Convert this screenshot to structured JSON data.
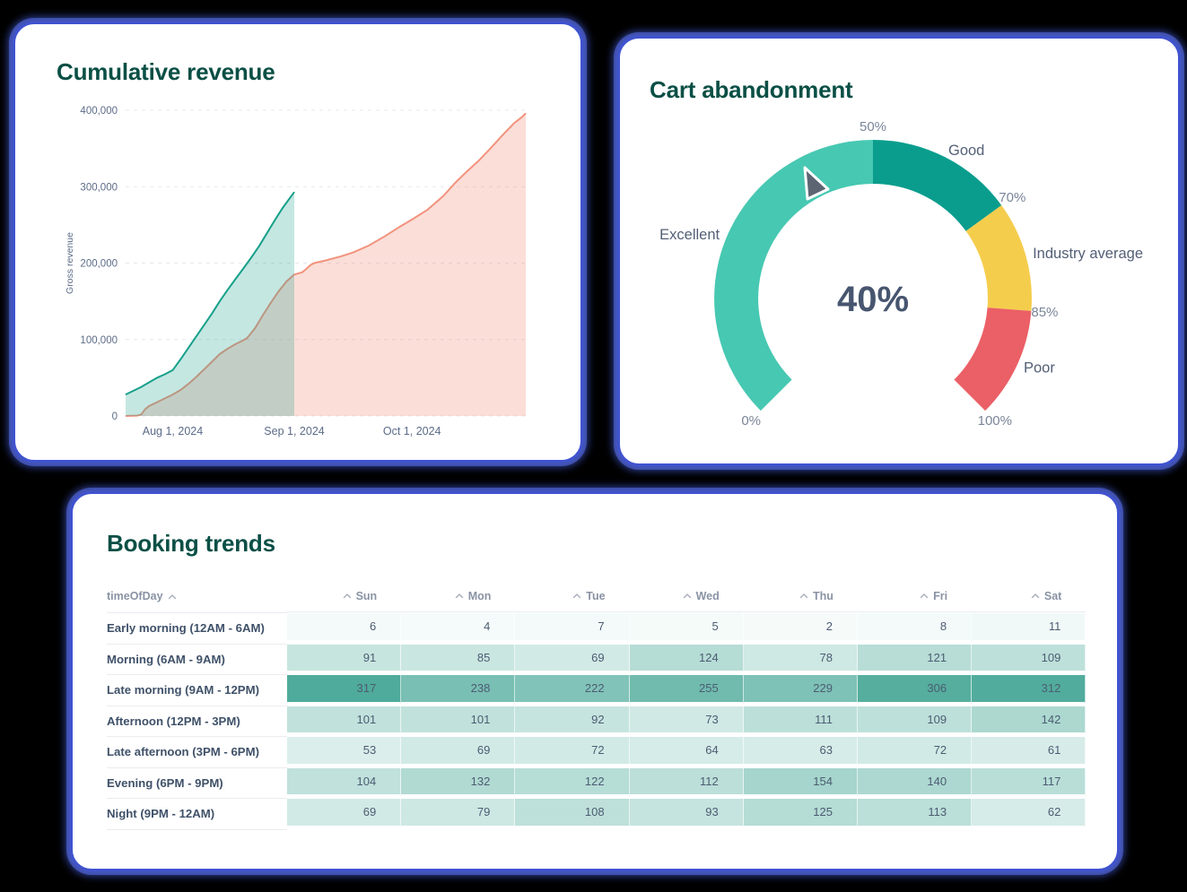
{
  "accent": {
    "card_border_blue": "#4053cf",
    "title_green": "#0a4f45",
    "axis_text": "#5c6b87",
    "tick_text": "#7a8598",
    "category_text": "#535f76",
    "value_text": "#47556f"
  },
  "chart_data": [
    {
      "id": "cumulative-revenue",
      "type": "area",
      "title": "Cumulative revenue",
      "ylabel": "Gross revenue",
      "ylim": [
        0,
        400000
      ],
      "y_ticks": [
        0,
        100000,
        200000,
        300000,
        400000
      ],
      "y_tick_labels": [
        "0",
        "100,000",
        "200,000",
        "300,000",
        "400,000"
      ],
      "x_range_days": [
        0,
        102
      ],
      "x_ticks": [
        {
          "day": 12,
          "label": "Aug 1, 2024"
        },
        {
          "day": 43,
          "label": "Sep 1, 2024"
        },
        {
          "day": 73,
          "label": "Oct 1, 2024"
        }
      ],
      "grid": "dashed-horizontal",
      "series": [
        {
          "name": "previous-period",
          "color": "#17a08a",
          "fill_opacity": 0.25,
          "points": [
            [
              0,
              28000
            ],
            [
              2,
              33000
            ],
            [
              4,
              38000
            ],
            [
              5,
              41000
            ],
            [
              6,
              44000
            ],
            [
              8,
              50000
            ],
            [
              10,
              54500
            ],
            [
              12,
              60000
            ],
            [
              13,
              67000
            ],
            [
              14,
              74000
            ],
            [
              16,
              89000
            ],
            [
              18,
              104000
            ],
            [
              20,
              119000
            ],
            [
              22,
              134000
            ],
            [
              24,
              150000
            ],
            [
              26,
              165000
            ],
            [
              28,
              179000
            ],
            [
              30,
              193000
            ],
            [
              32,
              207000
            ],
            [
              34,
              222000
            ],
            [
              36,
              239000
            ],
            [
              38,
              256000
            ],
            [
              40,
              272000
            ],
            [
              42,
              286000
            ],
            [
              43,
              293000
            ]
          ]
        },
        {
          "name": "current-period",
          "color": "#f2937e",
          "fill_opacity": 0.3,
          "points": [
            [
              0,
              0
            ],
            [
              3,
              500
            ],
            [
              4,
              2000
            ],
            [
              5,
              9000
            ],
            [
              6,
              13000
            ],
            [
              8,
              18000
            ],
            [
              10,
              23000
            ],
            [
              12,
              28000
            ],
            [
              14,
              34000
            ],
            [
              16,
              42000
            ],
            [
              18,
              51000
            ],
            [
              20,
              61000
            ],
            [
              22,
              71000
            ],
            [
              24,
              81000
            ],
            [
              26,
              88000
            ],
            [
              28,
              94000
            ],
            [
              30,
              99000
            ],
            [
              31,
              102000
            ],
            [
              33,
              115000
            ],
            [
              35,
              132000
            ],
            [
              37,
              148000
            ],
            [
              39,
              163000
            ],
            [
              41,
              176000
            ],
            [
              43,
              185000
            ],
            [
              45,
              188000
            ],
            [
              46,
              192000
            ],
            [
              47,
              197000
            ],
            [
              48,
              200000
            ],
            [
              51,
              203500
            ],
            [
              55,
              209000
            ],
            [
              58,
              214000
            ],
            [
              62,
              223000
            ],
            [
              66,
              235000
            ],
            [
              70,
              248000
            ],
            [
              73,
              257000
            ],
            [
              77,
              270000
            ],
            [
              81,
              288000
            ],
            [
              84,
              305000
            ],
            [
              87,
              320000
            ],
            [
              90,
              334000
            ],
            [
              93,
              350000
            ],
            [
              96,
              367000
            ],
            [
              99,
              383000
            ],
            [
              101,
              391000
            ],
            [
              102,
              396000
            ]
          ]
        }
      ]
    },
    {
      "id": "cart-abandonment",
      "type": "gauge",
      "title": "Cart abandonment",
      "value": 40,
      "value_label": "40%",
      "min": 0,
      "max": 100,
      "start_angle_deg": 225,
      "end_angle_deg": -45,
      "segments": [
        {
          "label": "Excellent",
          "from": 0,
          "to": 50,
          "color": "#47c8b2"
        },
        {
          "label": "Good",
          "from": 50,
          "to": 70,
          "color": "#0a9d8d"
        },
        {
          "label": "Industry average",
          "from": 70,
          "to": 85,
          "color": "#f5cd4d"
        },
        {
          "label": "Poor",
          "from": 85,
          "to": 100,
          "color": "#eb5f66"
        }
      ],
      "tick_labels": [
        {
          "value": 0,
          "label": "0%"
        },
        {
          "value": 50,
          "label": "50%"
        },
        {
          "value": 70,
          "label": "70%"
        },
        {
          "value": 85,
          "label": "85%"
        },
        {
          "value": 100,
          "label": "100%"
        }
      ],
      "needle_color": "#5d6573"
    },
    {
      "id": "booking-trends",
      "type": "heatmap",
      "title": "Booking trends",
      "row_header": "timeOfDay",
      "columns": [
        "Sun",
        "Mon",
        "Tue",
        "Wed",
        "Thu",
        "Fri",
        "Sat"
      ],
      "rows": [
        "Early morning (12AM - 6AM)",
        "Morning (6AM - 9AM)",
        "Late morning (9AM - 12PM)",
        "Afternoon (12PM - 3PM)",
        "Late afternoon (3PM - 6PM)",
        "Evening (6PM - 9PM)",
        "Night (9PM - 12AM)"
      ],
      "values": [
        [
          6,
          4,
          7,
          5,
          2,
          8,
          11
        ],
        [
          91,
          85,
          69,
          124,
          78,
          121,
          109
        ],
        [
          317,
          238,
          222,
          255,
          229,
          306,
          312
        ],
        [
          101,
          101,
          92,
          73,
          111,
          109,
          142
        ],
        [
          53,
          69,
          72,
          64,
          63,
          72,
          61
        ],
        [
          104,
          132,
          122,
          112,
          154,
          140,
          117
        ],
        [
          69,
          79,
          108,
          93,
          125,
          113,
          62
        ]
      ],
      "value_max": 317,
      "color_low": "#f7fcfb",
      "color_high": "#4fab9b"
    }
  ]
}
